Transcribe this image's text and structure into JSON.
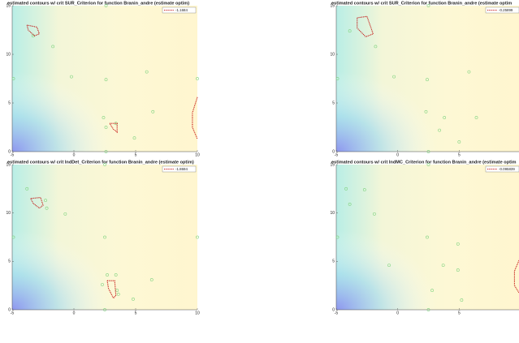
{
  "chart_data": [
    {
      "type": "scatter",
      "title": "estimated contours w/ crit SUR_Criterion for function Branin_andre (estimate optim)",
      "xlim": [
        -5,
        10
      ],
      "ylim": [
        0,
        15
      ],
      "xticks": [
        -5,
        0,
        5,
        10
      ],
      "yticks": [
        0,
        5,
        10,
        15
      ],
      "points": {
        "color": "#7fd37f",
        "x": [
          -3.3,
          -1.7,
          -4.9,
          -0.2,
          2.6,
          5.9,
          6.4,
          2.4,
          2.6,
          4.9,
          10,
          3.4,
          2.6,
          2.6
        ],
        "y": [
          11.9,
          10.8,
          7.5,
          7.7,
          7.4,
          8.2,
          4.1,
          3.5,
          0,
          1.4,
          7.5,
          2.9,
          2.5,
          15
        ]
      },
      "series": [
        {
          "name": "-1.1684",
          "color": "#c00000",
          "x": [
            -3.8,
            -3.0,
            -2.8,
            -3.2,
            -3.7,
            -3.8,
            null,
            2.9,
            3.5,
            3.5,
            3.2,
            2.9,
            null,
            10,
            9.6,
            9.6,
            10
          ],
          "y": [
            13.0,
            12.8,
            12.1,
            11.9,
            12.5,
            13.0,
            null,
            2.9,
            2.9,
            2.0,
            2.3,
            2.9,
            null,
            5.6,
            4.0,
            2.5,
            1.3
          ]
        }
      ]
    },
    {
      "type": "scatter",
      "title": "estimated contours w/ crit SUR_Criterion for function Branin_andre (estimate optim",
      "xlim": [
        -5,
        10
      ],
      "ylim": [
        0,
        15
      ],
      "xticks": [
        -5,
        0,
        5
      ],
      "yticks": [
        0,
        5,
        10,
        15
      ],
      "points": {
        "color": "#7fd37f",
        "x": [
          -3.9,
          -1.8,
          -4.9,
          -0.3,
          2.4,
          5.8,
          2.3,
          3.8,
          3.4,
          2.5,
          5,
          6.4,
          2.5
        ],
        "y": [
          12.4,
          10.8,
          7.5,
          7.7,
          7.4,
          8.2,
          4.1,
          3.5,
          2.2,
          0,
          1,
          3.5,
          15
        ]
      },
      "series": [
        {
          "name": "-0.25899",
          "color": "#c00000",
          "x": [
            -3.3,
            -2.5,
            -2.0,
            -2.6,
            -3.3,
            -3.3
          ],
          "y": [
            13.75,
            13.9,
            12.1,
            11.8,
            12.7,
            13.75
          ]
        }
      ]
    },
    {
      "type": "scatter",
      "title": "estimated contours w/ crit IndDet_Criterion for function Branin_andre (estimate optim)",
      "xlim": [
        -5,
        10
      ],
      "ylim": [
        0,
        15
      ],
      "xticks": [
        -5,
        0,
        5,
        10
      ],
      "yticks": [
        0,
        5,
        10,
        15
      ],
      "points": {
        "color": "#7fd37f",
        "x": [
          -3.8,
          -2.3,
          -2.2,
          -0.7,
          -4.9,
          2.5,
          2.3,
          2.7,
          3.4,
          3.5,
          3.6,
          4.8,
          6.3,
          2.5,
          10,
          2.5
        ],
        "y": [
          12.5,
          11.3,
          10.5,
          9.9,
          7.5,
          7.5,
          2.6,
          3.6,
          3.6,
          2.0,
          1.6,
          1.1,
          3.1,
          0,
          7.5,
          15
        ]
      },
      "series": [
        {
          "name": "-1.8694",
          "color": "#c00000",
          "x": [
            -3.5,
            -2.7,
            -2.5,
            -2.8,
            -3.3,
            -3.5,
            null,
            2.7,
            3.3,
            3.4,
            3.2,
            2.8,
            2.7
          ],
          "y": [
            11.5,
            11.6,
            10.8,
            10.5,
            11.0,
            11.5,
            null,
            3.0,
            3.0,
            1.5,
            1.2,
            2.2,
            3.0
          ]
        }
      ]
    },
    {
      "type": "scatter",
      "title": "estimated contours w/ crit IndMC_Criterion for function Branin_andre (estimate optim",
      "xlim": [
        -5,
        10
      ],
      "ylim": [
        0,
        15
      ],
      "xticks": [
        -5,
        0,
        5
      ],
      "yticks": [
        0,
        5,
        10,
        15
      ],
      "points": {
        "color": "#7fd37f",
        "x": [
          -4.2,
          -2.7,
          -3.9,
          -1.9,
          -4.9,
          2.4,
          4.9,
          3.7,
          4.9,
          -0.7,
          2.8,
          5.2,
          2.5,
          2.5
        ],
        "y": [
          12.5,
          12.4,
          10.9,
          9.9,
          7.5,
          7.5,
          6.8,
          4.6,
          4.1,
          4.6,
          2.0,
          1.0,
          0,
          15
        ]
      },
      "series": [
        {
          "name": "-0.095839",
          "color": "#c00000",
          "x": [
            10,
            9.5,
            9.5,
            10
          ],
          "y": [
            5.5,
            4.0,
            2.5,
            1.5
          ]
        }
      ]
    }
  ]
}
